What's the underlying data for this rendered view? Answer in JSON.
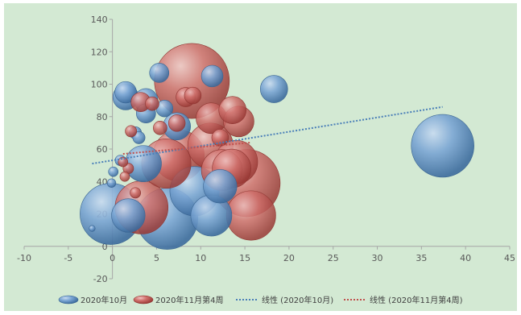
{
  "chart_data": {
    "type": "scatter",
    "subtype": "bubble",
    "title": "",
    "xlabel": "",
    "ylabel": "",
    "xlim": [
      -10,
      45
    ],
    "ylim": [
      -20,
      140
    ],
    "x_ticks": [
      -10,
      -5,
      0,
      5,
      10,
      15,
      20,
      25,
      30,
      35,
      40,
      45
    ],
    "y_ticks": [
      -20,
      0,
      20,
      40,
      60,
      80,
      100,
      120,
      140
    ],
    "grid": false,
    "legend_position": "bottom",
    "series": [
      {
        "name": "2020年10月",
        "color": "#5b8ec4",
        "points": [
          {
            "x": -0.2,
            "y": 20,
            "size": 20
          },
          {
            "x": 1.8,
            "y": 19,
            "size": 6
          },
          {
            "x": 6.2,
            "y": 17,
            "size": 20
          },
          {
            "x": 11.2,
            "y": 19,
            "size": 9
          },
          {
            "x": 9.3,
            "y": 34,
            "size": 13
          },
          {
            "x": 12.2,
            "y": 37,
            "size": 6
          },
          {
            "x": 3.5,
            "y": 51,
            "size": 7
          },
          {
            "x": 1.5,
            "y": 92,
            "size": 3.5
          },
          {
            "x": 1.5,
            "y": 95,
            "size": 2.5
          },
          {
            "x": 3.8,
            "y": 90,
            "size": 3
          },
          {
            "x": 3.8,
            "y": 82,
            "size": 2
          },
          {
            "x": 5.3,
            "y": 107,
            "size": 2
          },
          {
            "x": 5.9,
            "y": 85,
            "size": 1.5
          },
          {
            "x": 7.3,
            "y": 74,
            "size": 4
          },
          {
            "x": 11.3,
            "y": 105,
            "size": 2.5
          },
          {
            "x": 18.3,
            "y": 97,
            "size": 4
          },
          {
            "x": 37.4,
            "y": 62,
            "size": 21
          },
          {
            "x": 2.6,
            "y": 70,
            "size": 0.8
          },
          {
            "x": 3.0,
            "y": 67,
            "size": 0.8
          },
          {
            "x": 0.9,
            "y": 53,
            "size": 0.6
          },
          {
            "x": 0.1,
            "y": 46,
            "size": 0.5
          },
          {
            "x": -0.1,
            "y": 39,
            "size": 0.4
          },
          {
            "x": -2.3,
            "y": 11,
            "size": 0.2
          }
        ]
      },
      {
        "name": "2020年11月第4周",
        "color": "#c0504d",
        "points": [
          {
            "x": 9.0,
            "y": 102,
            "size": 30
          },
          {
            "x": 7.5,
            "y": 56,
            "size": 14
          },
          {
            "x": 6.1,
            "y": 51,
            "size": 13
          },
          {
            "x": 3.3,
            "y": 24,
            "size": 15
          },
          {
            "x": 15.2,
            "y": 39,
            "size": 24
          },
          {
            "x": 15.7,
            "y": 19,
            "size": 13
          },
          {
            "x": 11.1,
            "y": 62,
            "size": 11
          },
          {
            "x": 14.0,
            "y": 52,
            "size": 10
          },
          {
            "x": 12.4,
            "y": 47,
            "size": 9
          },
          {
            "x": 13.5,
            "y": 48,
            "size": 8
          },
          {
            "x": 11.2,
            "y": 79,
            "size": 5
          },
          {
            "x": 13.6,
            "y": 84,
            "size": 4
          },
          {
            "x": 14.3,
            "y": 77,
            "size": 5
          },
          {
            "x": 3.2,
            "y": 89,
            "size": 2
          },
          {
            "x": 8.3,
            "y": 92,
            "size": 2
          },
          {
            "x": 9.1,
            "y": 93,
            "size": 1.5
          },
          {
            "x": 7.3,
            "y": 76,
            "size": 1.5
          },
          {
            "x": 5.4,
            "y": 73,
            "size": 1
          },
          {
            "x": 4.5,
            "y": 88,
            "size": 1
          },
          {
            "x": 12.2,
            "y": 67,
            "size": 1.5
          },
          {
            "x": 2.1,
            "y": 71,
            "size": 0.7
          },
          {
            "x": 1.8,
            "y": 48,
            "size": 0.6
          },
          {
            "x": 1.2,
            "y": 52,
            "size": 0.5
          },
          {
            "x": 1.4,
            "y": 43,
            "size": 0.5
          },
          {
            "x": 2.6,
            "y": 33,
            "size": 0.6
          }
        ]
      }
    ],
    "trendlines": [
      {
        "name": "线性 (2020年10月)",
        "color": "#4a7fb8",
        "x": [
          -2.3,
          37.4
        ],
        "y": [
          51,
          86
        ]
      },
      {
        "name": "线性 (2020年11月第4周)",
        "color": "#c0504d",
        "x": [
          1.2,
          15.7
        ],
        "y": [
          57,
          64
        ]
      }
    ]
  }
}
